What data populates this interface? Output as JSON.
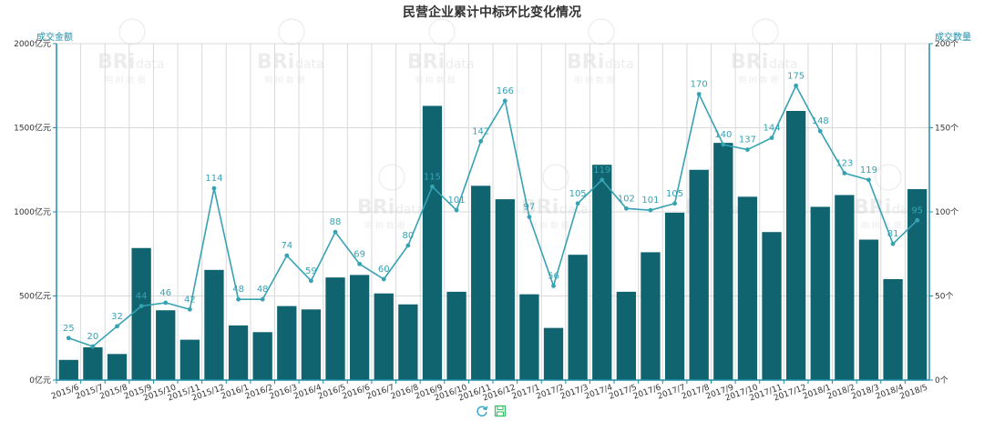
{
  "colors": {
    "bar": "#0f6470",
    "line": "#37a2b3",
    "axis": "#1f8fa7",
    "grid": "#d9d9d9",
    "label": "#37a2b3"
  },
  "watermark": {
    "brand": "BRi",
    "brand_suffix": "data",
    "sub": "明 树 数 据"
  },
  "toolbox": {
    "icons": [
      "refresh-icon",
      "save-icon"
    ]
  },
  "chart_data": {
    "type": "bar",
    "title": "民营企业累计中标环比变化情况",
    "xlabel": "",
    "y_left_name": "成交金额",
    "y_right_name": "成交数量",
    "y_left_ticks": [
      "0亿元",
      "500亿元",
      "1000亿元",
      "1500亿元",
      "2000亿元"
    ],
    "y_right_ticks": [
      "0个",
      "50个",
      "100个",
      "150个",
      "200个"
    ],
    "ylim_left": [
      0,
      2000
    ],
    "ylim_right": [
      0,
      200
    ],
    "grid": true,
    "categories": [
      "2015/6",
      "2015/7",
      "2015/8",
      "2015/9",
      "2015/10",
      "2015/11",
      "2015/12",
      "2016/1",
      "2016/2",
      "2016/3",
      "2016/4",
      "2016/5",
      "2016/6",
      "2016/7",
      "2016/8",
      "2016/9",
      "2016/10",
      "2016/11",
      "2016/12",
      "2017/1",
      "2017/2",
      "2017/3",
      "2017/4",
      "2017/5",
      "2017/6",
      "2017/7",
      "2017/8",
      "2017/9",
      "2017/10",
      "2017/11",
      "2017/12",
      "2018/1",
      "2018/2",
      "2018/3",
      "2018/4",
      "2018/5"
    ],
    "series": [
      {
        "type": "bar",
        "axis": "left",
        "values": [
          120,
          195,
          155,
          785,
          415,
          240,
          655,
          325,
          285,
          440,
          420,
          610,
          625,
          515,
          450,
          1630,
          525,
          1155,
          1075,
          510,
          310,
          745,
          1280,
          525,
          760,
          995,
          1250,
          1410,
          1090,
          880,
          1600,
          1030,
          1100,
          835,
          600,
          1135
        ]
      },
      {
        "type": "line",
        "axis": "right",
        "values": [
          25,
          20,
          32,
          44,
          46,
          42,
          114,
          48,
          48,
          74,
          59,
          88,
          69,
          60,
          80,
          115,
          101,
          142,
          166,
          97,
          56,
          105,
          119,
          102,
          101,
          105,
          170,
          140,
          137,
          144,
          175,
          148,
          123,
          119,
          81,
          95
        ]
      }
    ]
  }
}
